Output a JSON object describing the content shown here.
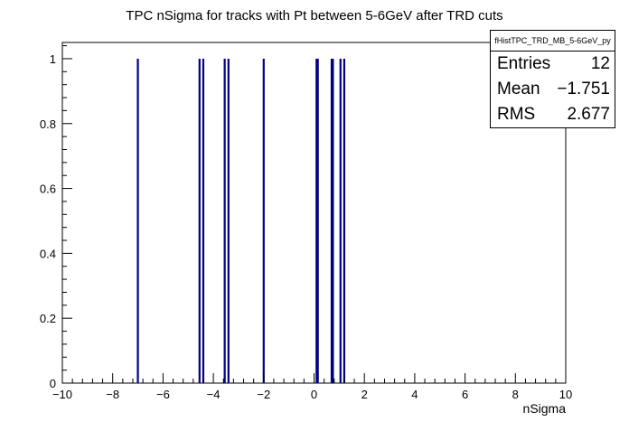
{
  "chart_data": {
    "type": "bar",
    "title": "TPC nSigma for tracks with Pt between 5-6GeV after TRD cuts",
    "xlabel": "nSigma",
    "ylabel": "",
    "xlim": [
      -10,
      10
    ],
    "ylim": [
      0,
      1.05
    ],
    "x_ticks": [
      "−10",
      "−8",
      "−6",
      "−4",
      "−2",
      "0",
      "2",
      "4",
      "6",
      "8",
      "10"
    ],
    "y_ticks": [
      "0",
      "0.2",
      "0.4",
      "0.6",
      "0.8",
      "1"
    ],
    "series": [
      {
        "color": "#000080",
        "x": [
          -7.0,
          -4.55,
          -4.4,
          -3.55,
          -3.4,
          -2.0,
          0.1,
          0.15,
          0.7,
          0.75,
          1.05,
          1.2
        ],
        "values": [
          1,
          1,
          1,
          1,
          1,
          1,
          1,
          1,
          1,
          1,
          1,
          1
        ]
      }
    ],
    "stats_box": {
      "name": "fHistTPC_TRD_MB_5-6GeV_py",
      "entries_label": "Entries",
      "entries": "12",
      "mean_label": "Mean",
      "mean": "−1.751",
      "rms_label": "RMS",
      "rms": "2.677"
    }
  }
}
